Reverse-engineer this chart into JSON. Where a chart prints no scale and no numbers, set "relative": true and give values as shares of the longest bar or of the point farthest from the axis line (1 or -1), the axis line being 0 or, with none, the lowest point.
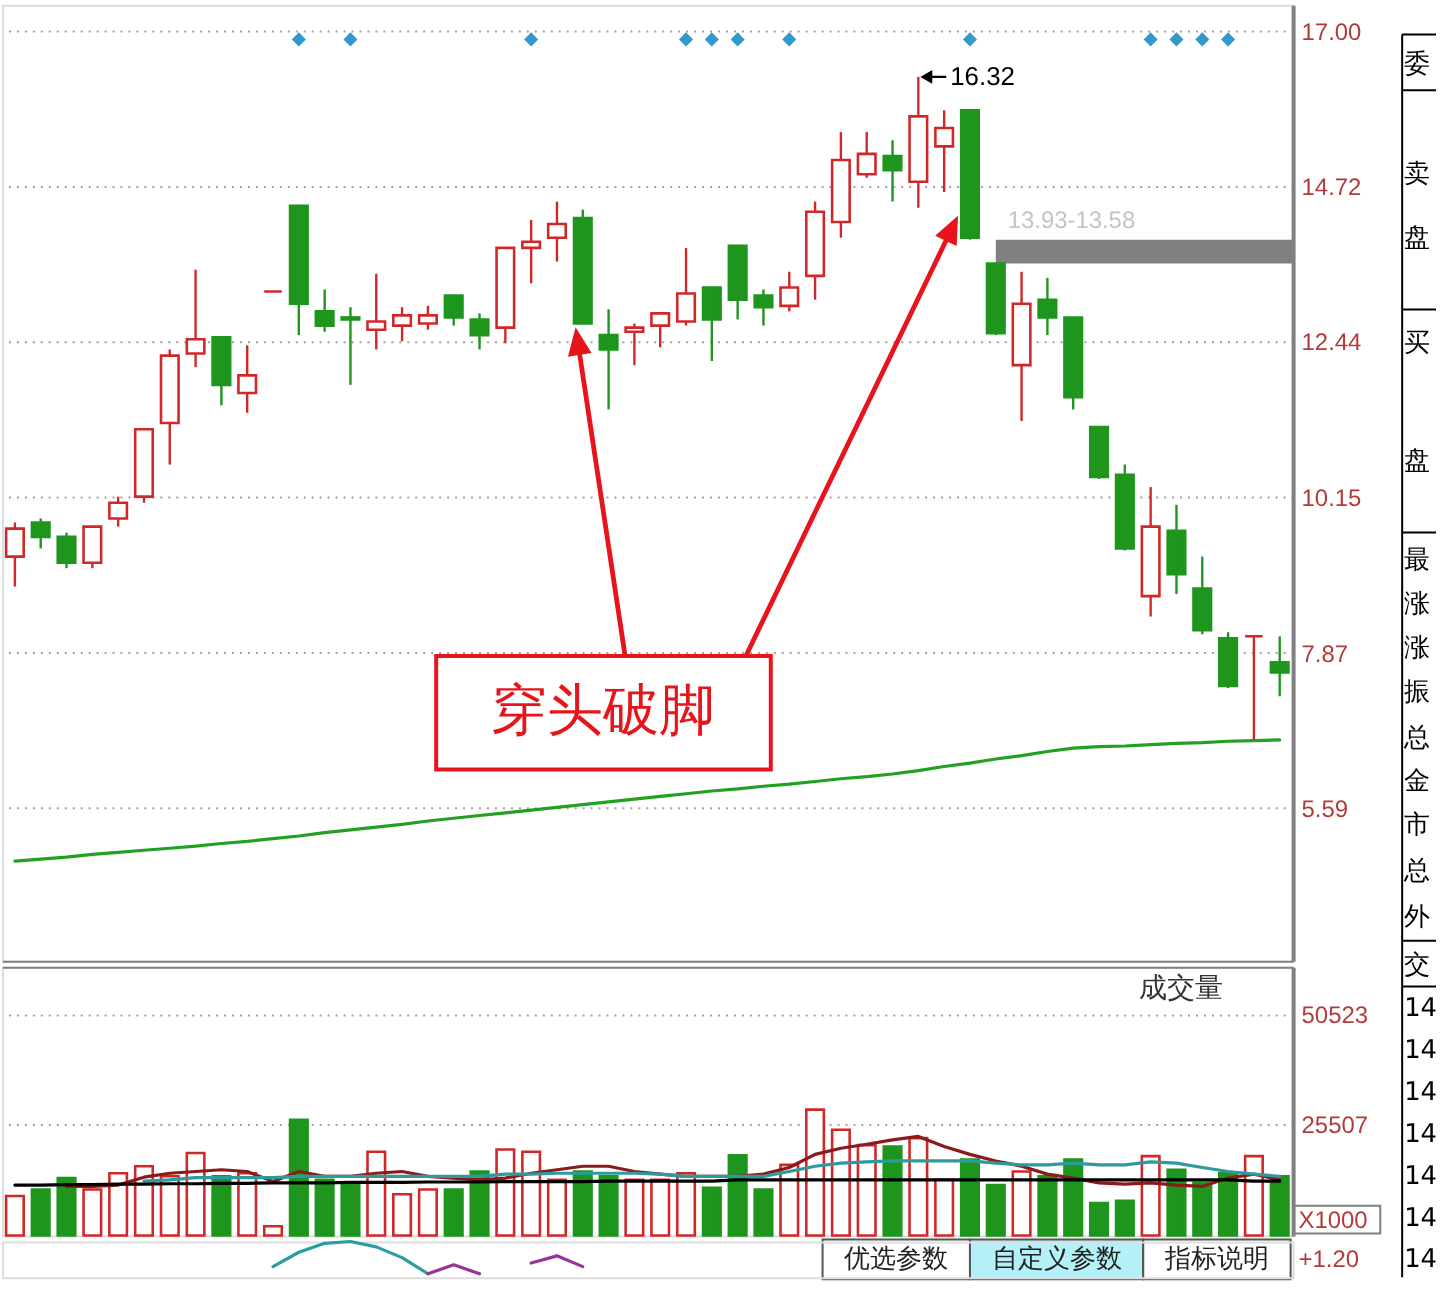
{
  "chart_data": [
    {
      "type": "candlestick",
      "categories": [
        null,
        null,
        null,
        null,
        null,
        null,
        null,
        null,
        null,
        null,
        null,
        null,
        null,
        null,
        null,
        null,
        null,
        null,
        null,
        null,
        null,
        null,
        null,
        null,
        null,
        null,
        null,
        null,
        null,
        null,
        null,
        null,
        null,
        null,
        null,
        null,
        null,
        null,
        null,
        null,
        null,
        null,
        null,
        null,
        null,
        null,
        null,
        null,
        null,
        null
      ],
      "ohlc": [
        [
          9.28,
          9.78,
          8.84,
          9.69
        ],
        [
          9.78,
          9.84,
          9.4,
          9.57
        ],
        [
          9.57,
          9.63,
          9.11,
          9.19
        ],
        [
          9.19,
          9.72,
          9.11,
          9.72
        ],
        [
          9.84,
          10.16,
          9.72,
          10.07
        ],
        [
          10.16,
          11.15,
          10.07,
          11.15
        ],
        [
          11.24,
          12.32,
          10.63,
          12.23
        ],
        [
          12.26,
          13.49,
          12.06,
          12.47
        ],
        [
          12.5,
          12.5,
          11.5,
          11.8
        ],
        [
          11.68,
          12.38,
          11.39,
          11.94
        ],
        [
          13.17,
          13.17,
          13.17,
          13.17
        ],
        [
          14.43,
          14.43,
          12.53,
          12.99
        ],
        [
          12.88,
          13.2,
          12.58,
          12.67
        ],
        [
          12.79,
          12.94,
          11.8,
          12.76
        ],
        [
          12.61,
          13.43,
          12.32,
          12.73
        ],
        [
          12.67,
          12.94,
          12.44,
          12.82
        ],
        [
          12.7,
          12.96,
          12.61,
          12.82
        ],
        [
          13.11,
          13.11,
          12.67,
          12.79
        ],
        [
          12.76,
          12.85,
          12.32,
          12.53
        ],
        [
          12.64,
          13.81,
          12.41,
          13.81
        ],
        [
          13.81,
          14.22,
          13.29,
          13.9
        ],
        [
          13.96,
          14.49,
          13.61,
          14.16
        ],
        [
          14.25,
          14.37,
          12.7,
          12.7
        ],
        [
          12.53,
          12.91,
          11.44,
          12.32
        ],
        [
          12.58,
          12.7,
          12.09,
          12.64
        ],
        [
          12.67,
          12.85,
          12.35,
          12.85
        ],
        [
          12.73,
          13.81,
          12.67,
          13.14
        ],
        [
          13.23,
          13.23,
          12.15,
          12.76
        ],
        [
          13.84,
          13.84,
          12.76,
          13.05
        ],
        [
          13.11,
          13.2,
          12.67,
          12.94
        ],
        [
          12.96,
          13.46,
          12.88,
          13.23
        ],
        [
          13.4,
          14.49,
          13.05,
          14.34
        ],
        [
          14.19,
          15.51,
          13.96,
          15.1
        ],
        [
          14.89,
          15.51,
          14.84,
          15.19
        ],
        [
          15.16,
          15.39,
          14.49,
          14.95
        ],
        [
          14.78,
          16.32,
          14.4,
          15.74
        ],
        [
          15.3,
          15.83,
          14.63,
          15.57
        ],
        [
          15.83,
          15.83,
          13.93,
          13.96
        ],
        [
          13.58,
          13.58,
          12.53,
          12.56
        ],
        [
          12.09,
          13.46,
          11.27,
          12.99
        ],
        [
          13.05,
          13.37,
          12.53,
          12.79
        ],
        [
          12.79,
          12.79,
          11.44,
          11.62
        ],
        [
          11.18,
          11.18,
          10.42,
          10.45
        ],
        [
          10.48,
          10.63,
          9.37,
          9.4
        ],
        [
          8.7,
          10.3,
          8.4,
          9.72
        ],
        [
          9.66,
          10.04,
          8.73,
          9.02
        ],
        [
          8.81,
          9.28,
          8.14,
          8.2
        ],
        [
          8.08,
          8.17,
          7.35,
          7.38
        ],
        [
          8.11,
          8.11,
          6.59,
          8.11
        ],
        [
          7.73,
          8.11,
          7.23,
          7.58
        ]
      ],
      "colors": [
        "#d02828",
        "#1e961e",
        "#1e961e",
        "#d02828",
        "#d02828",
        "#d02828",
        "#d02828",
        "#d02828",
        "#1e961e",
        "#d02828",
        "#d02828",
        "#1e961e",
        "#1e961e",
        "#1e961e",
        "#d02828",
        "#d02828",
        "#d02828",
        "#1e961e",
        "#1e961e",
        "#d02828",
        "#d02828",
        "#d02828",
        "#1e961e",
        "#1e961e",
        "#d02828",
        "#d02828",
        "#d02828",
        "#1e961e",
        "#1e961e",
        "#1e961e",
        "#d02828",
        "#d02828",
        "#d02828",
        "#d02828",
        "#1e961e",
        "#d02828",
        "#d02828",
        "#1e961e",
        "#1e961e",
        "#d02828",
        "#1e961e",
        "#1e961e",
        "#1e961e",
        "#1e961e",
        "#d02828",
        "#1e961e",
        "#1e961e",
        "#1e961e",
        "#d02828",
        "#1e961e"
      ],
      "series": [
        {
          "type": "line",
          "color": "#22a022",
          "values": [
            4.81,
            4.84,
            4.87,
            4.91,
            4.94,
            4.97,
            5.0,
            5.03,
            5.07,
            5.1,
            5.14,
            5.18,
            5.23,
            5.27,
            5.31,
            5.35,
            5.4,
            5.44,
            5.48,
            5.52,
            5.56,
            5.6,
            5.64,
            5.68,
            5.72,
            5.76,
            5.8,
            5.84,
            5.87,
            5.91,
            5.94,
            5.98,
            6.02,
            6.05,
            6.09,
            6.14,
            6.2,
            6.25,
            6.31,
            6.36,
            6.42,
            6.47,
            6.49,
            6.5,
            6.52,
            6.54,
            6.55,
            6.57,
            6.58,
            6.59
          ]
        },
        {
          "type": "scatter",
          "marker": "diamond",
          "color": "#3399cc",
          "values": [
            null,
            null,
            null,
            null,
            null,
            null,
            null,
            null,
            null,
            null,
            null,
            16.87,
            null,
            16.87,
            null,
            null,
            null,
            null,
            null,
            null,
            16.87,
            null,
            null,
            null,
            null,
            null,
            16.87,
            16.87,
            16.87,
            null,
            16.87,
            null,
            null,
            null,
            null,
            null,
            null,
            16.87,
            null,
            null,
            null,
            null,
            null,
            null,
            16.87,
            16.87,
            16.87,
            16.87,
            null,
            null
          ]
        }
      ],
      "ylim": [
        3.35,
        17.38
      ],
      "yticks": [
        5.59,
        7.87,
        10.15,
        12.44,
        14.72,
        {
          "value": 17,
          "label": "17.00"
        }
      ],
      "grid": "y",
      "tick_labels": "y",
      "annotations": [
        "16.32",
        "穿头破脚"
      ],
      "bands": [
        {
          "axis": "y",
          "from": 13.58,
          "to": 13.93,
          "label": "13.93-13.58",
          "color": "#808080"
        }
      ]
    },
    {
      "type": "bar",
      "title": "成交量",
      "ylabel": "X1000",
      "categories": [
        null,
        null,
        null,
        null,
        null,
        null,
        null,
        null,
        null,
        null,
        null,
        null,
        null,
        null,
        null,
        null,
        null,
        null,
        null,
        null,
        null,
        null,
        null,
        null,
        null,
        null,
        null,
        null,
        null,
        null,
        null,
        null,
        null,
        null,
        null,
        null,
        null,
        null,
        null,
        null,
        null,
        null,
        null,
        null,
        null,
        null,
        null,
        null,
        null,
        null
      ],
      "series": [
        {
          "type": "bar",
          "colors": [
            "#d02828",
            "#1e961e",
            "#1e961e",
            "#d02828",
            "#d02828",
            "#d02828",
            "#d02828",
            "#d02828",
            "#1e961e",
            "#d02828",
            "#d02828",
            "#1e961e",
            "#1e961e",
            "#1e961e",
            "#d02828",
            "#d02828",
            "#d02828",
            "#1e961e",
            "#1e961e",
            "#d02828",
            "#d02828",
            "#d02828",
            "#1e961e",
            "#1e961e",
            "#d02828",
            "#d02828",
            "#d02828",
            "#1e961e",
            "#1e961e",
            "#1e961e",
            "#d02828",
            "#d02828",
            "#d02828",
            "#d02828",
            "#1e961e",
            "#d02828",
            "#d02828",
            "#1e961e",
            "#1e961e",
            "#d02828",
            "#1e961e",
            "#1e961e",
            "#1e961e",
            "#1e961e",
            "#d02828",
            "#1e961e",
            "#1e961e",
            "#1e961e",
            "#d02828",
            "#1e961e"
          ],
          "values": [
            9000,
            10500,
            13100,
            10500,
            14200,
            15800,
            13500,
            18800,
            13500,
            14200,
            2100,
            26400,
            12700,
            12000,
            19100,
            9400,
            10500,
            10500,
            14600,
            19600,
            19100,
            12700,
            14600,
            13500,
            12700,
            12700,
            14200,
            10900,
            18300,
            10500,
            16100,
            28700,
            24100,
            20600,
            20300,
            22200,
            12700,
            17300,
            11500,
            14600,
            13500,
            17300,
            7400,
            7900,
            18100,
            15000,
            12000,
            14200,
            18100,
            13500
          ]
        },
        {
          "type": "line",
          "color": "#8b1a1a",
          "values": [
            null,
            null,
            11200,
            11200,
            11500,
            13300,
            14200,
            14600,
            15000,
            14600,
            12300,
            14600,
            13500,
            13500,
            14200,
            14600,
            13500,
            13100,
            12700,
            13100,
            14200,
            15000,
            15800,
            15800,
            14600,
            14000,
            13500,
            13500,
            13500,
            14000,
            15500,
            18500,
            19900,
            20800,
            21800,
            22600,
            20300,
            18500,
            17000,
            15800,
            14000,
            13100,
            12000,
            11700,
            12000,
            11500,
            11200,
            13100,
            14000,
            12700
          ]
        },
        {
          "type": "line",
          "color": "#2e9a9e",
          "values": [
            null,
            null,
            null,
            null,
            null,
            12400,
            12700,
            13200,
            13200,
            13200,
            13200,
            13500,
            13500,
            13500,
            13500,
            13500,
            13500,
            13500,
            13500,
            14000,
            14000,
            14200,
            14200,
            14200,
            14200,
            14000,
            13500,
            13500,
            13500,
            13500,
            14600,
            15800,
            16500,
            16800,
            17000,
            17000,
            17000,
            17000,
            16500,
            16100,
            16100,
            16500,
            16100,
            16100,
            16800,
            16500,
            15500,
            14600,
            14000,
            13500
          ]
        },
        {
          "type": "line",
          "color": "#000000",
          "values": [
            11500,
            11500,
            11600,
            11600,
            11700,
            11700,
            11800,
            11800,
            11900,
            11900,
            12000,
            12000,
            12000,
            12100,
            12100,
            12100,
            12200,
            12200,
            12200,
            12300,
            12300,
            12300,
            12300,
            12400,
            12400,
            12400,
            12400,
            12400,
            12700,
            12700,
            12700,
            12700,
            12700,
            12700,
            12700,
            12700,
            12700,
            12700,
            12700,
            12700,
            12700,
            12700,
            12700,
            12700,
            12700,
            12700,
            12700,
            12700,
            12400,
            12400
          ]
        }
      ],
      "ylim": [
        0,
        61300
      ],
      "yticks": [
        25507,
        50523
      ],
      "grid": "y",
      "tick_labels": "y",
      "annotations": [
        "优选参数",
        "自定义参数",
        "指标说明"
      ]
    },
    {
      "type": "line",
      "relative": true,
      "categories": [
        null,
        null,
        null,
        null,
        null,
        null,
        null,
        null,
        null,
        null,
        null,
        null,
        null,
        null,
        null,
        null,
        null,
        null,
        null,
        null,
        null,
        null,
        null,
        null,
        null,
        null,
        null,
        null,
        null,
        null,
        null,
        null,
        null,
        null,
        null,
        null,
        null,
        null,
        null,
        null,
        null,
        null,
        null,
        null,
        null,
        null,
        null,
        null,
        null,
        null
      ],
      "series": [
        {
          "color": "#2a9d9d",
          "values": [
            null,
            null,
            null,
            null,
            null,
            null,
            null,
            null,
            null,
            null,
            0.3,
            0.7,
            0.95,
            1,
            0.85,
            0.55,
            0.1,
            null,
            null,
            null,
            null,
            null,
            null,
            null,
            null,
            null,
            null,
            null,
            null,
            null,
            null,
            null,
            null,
            null,
            null,
            null,
            null,
            null,
            null,
            null,
            null,
            null,
            null,
            null,
            null,
            null,
            null,
            null,
            null,
            null
          ]
        },
        {
          "color": "#993399",
          "values": [
            null,
            null,
            null,
            null,
            null,
            null,
            null,
            null,
            null,
            null,
            null,
            null,
            null,
            null,
            null,
            null,
            0.1,
            0.35,
            0.1,
            null,
            0.4,
            0.6,
            0.3,
            null,
            null,
            null,
            null,
            null,
            null,
            null,
            null,
            null,
            null,
            null,
            null,
            null,
            null,
            null,
            null,
            null,
            null,
            null,
            null,
            null,
            null,
            null,
            null,
            null,
            null,
            null
          ]
        }
      ],
      "tick_labels": false,
      "annotations": [
        "+1.20"
      ]
    },
    {
      "type": "other",
      "annotations": [
        "委",
        "卖",
        "盘",
        "买",
        "盘",
        "最",
        "涨",
        "涨",
        "振",
        "总",
        "金",
        "市",
        "总",
        "外",
        "交",
        "14",
        "14",
        "14",
        "14",
        "14",
        "14",
        "14"
      ]
    }
  ]
}
